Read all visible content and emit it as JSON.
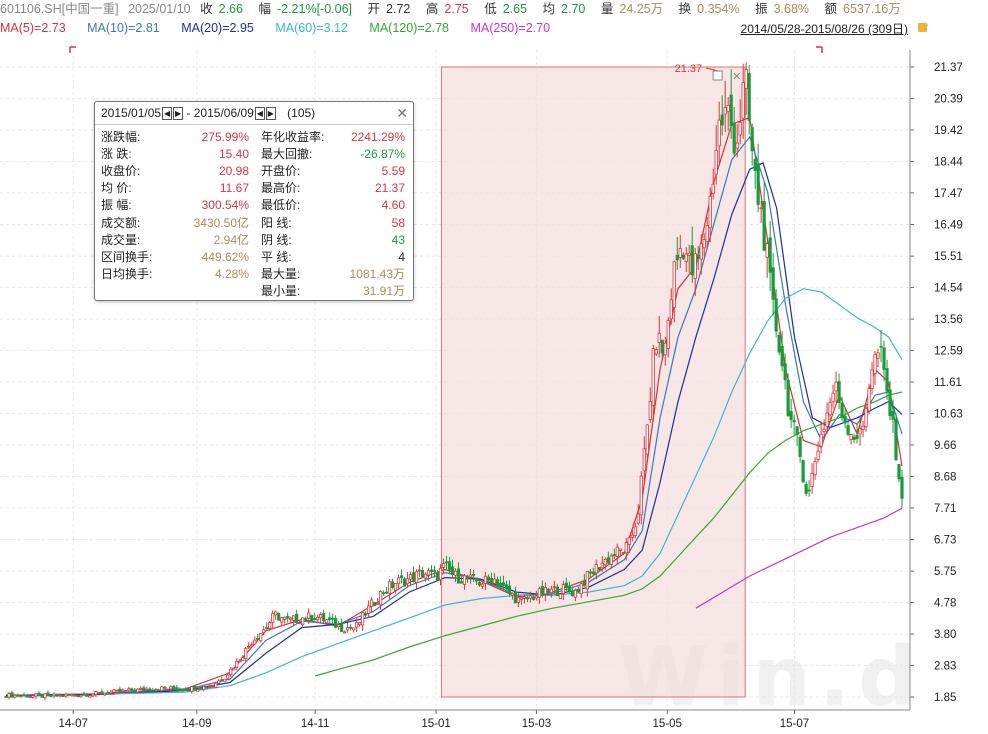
{
  "header": {
    "code": "601106.SH[中国一重]",
    "date": "2025/01/10",
    "close_label": "收",
    "close": "2.66",
    "chg_label": "幅",
    "chg": "-2.21%[-0.06]",
    "open_label": "开",
    "open": "2.72",
    "high_label": "高",
    "high": "2.75",
    "low_label": "低",
    "low": "2.65",
    "avg_label": "均",
    "avg": "2.70",
    "vol_label": "量",
    "vol": "24.25万",
    "turn_label": "换",
    "turn": "0.354%",
    "amp_label": "振",
    "amp": "3.68%",
    "amt_label": "额",
    "amt": "6537.16万"
  },
  "ma_legend": [
    {
      "label": "MA(5)=2.73",
      "color": "#d6323a"
    },
    {
      "label": "MA(10)=2.81",
      "color": "#3a78b8"
    },
    {
      "label": "MA(20)=2.95",
      "color": "#1c2fa0"
    },
    {
      "label": "MA(60)=3.12",
      "color": "#3ab7d6"
    },
    {
      "label": "MA(120)=2.78",
      "color": "#35a833"
    },
    {
      "label": "MA(250)=2.70",
      "color": "#c436d1"
    }
  ],
  "range_label": "2014/05/28-2015/08/26 (309日)",
  "stats": {
    "title_start": "2015/01/05",
    "title_end": "2015/06/09",
    "title_count": "(105)",
    "left": [
      {
        "k": "涨跌幅:",
        "v": "275.99%",
        "c": "up"
      },
      {
        "k": "涨  跌:",
        "v": "15.40",
        "c": "up"
      },
      {
        "k": "收盘价:",
        "v": "20.98",
        "c": "up"
      },
      {
        "k": "均  价:",
        "v": "11.67",
        "c": "up"
      },
      {
        "k": "振  幅:",
        "v": "300.54%",
        "c": "up"
      },
      {
        "k": "成交额:",
        "v": "3430.50亿",
        "c": "gold"
      },
      {
        "k": "成交量:",
        "v": "2.94亿",
        "c": "gold"
      },
      {
        "k": "区间换手:",
        "v": "449.62%",
        "c": "gold"
      },
      {
        "k": "日均换手:",
        "v": "4.28%",
        "c": "gold"
      }
    ],
    "right": [
      {
        "k": "年化收益率:",
        "v": "2241.29%",
        "c": "up"
      },
      {
        "k": "最大回撤:",
        "v": "-26.87%",
        "c": "dn"
      },
      {
        "k": "开盘价:",
        "v": "5.59",
        "c": "up"
      },
      {
        "k": "最高价:",
        "v": "21.37",
        "c": "up"
      },
      {
        "k": "最低价:",
        "v": "4.60",
        "c": "up"
      },
      {
        "k": "阳  线:",
        "v": "58",
        "c": "up"
      },
      {
        "k": "阴  线:",
        "v": "43",
        "c": "dn"
      },
      {
        "k": "平  线:",
        "v": "4",
        "c": "plain"
      },
      {
        "k": "最大量:",
        "v": "1081.43万",
        "c": "gold"
      },
      {
        "k": "最小量:",
        "v": "31.91万",
        "c": "gold"
      }
    ]
  },
  "watermark": "Win.d",
  "chart_data": {
    "type": "line",
    "ylim": [
      1.6,
      21.7
    ],
    "yticks": [
      "21.37",
      "20.39",
      "19.42",
      "18.44",
      "17.47",
      "16.49",
      "15.51",
      "14.54",
      "13.56",
      "12.59",
      "11.61",
      "10.63",
      "9.66",
      "8.68",
      "7.71",
      "6.73",
      "5.75",
      "4.78",
      "3.80",
      "2.83",
      "1.85"
    ],
    "xticks": [
      {
        "label": "14-07",
        "t": 0.075
      },
      {
        "label": "14-09",
        "t": 0.213
      },
      {
        "label": "14-11",
        "t": 0.345
      },
      {
        "label": "15-01",
        "t": 0.48
      },
      {
        "label": "15-03",
        "t": 0.592
      },
      {
        "label": "15-05",
        "t": 0.738
      },
      {
        "label": "15-07",
        "t": 0.88
      }
    ],
    "selection": {
      "start": "2015/01/05",
      "end": "2015/06/09",
      "t0": 0.486,
      "t1": 0.825,
      "color": "#e07070"
    },
    "max_marker": {
      "label": "21.37",
      "t": 0.797,
      "value": 21.37
    },
    "close_series": [
      [
        0,
        1.9
      ],
      [
        0.05,
        1.88
      ],
      [
        0.1,
        1.95
      ],
      [
        0.14,
        2.05
      ],
      [
        0.17,
        2.12
      ],
      [
        0.2,
        2.1
      ],
      [
        0.23,
        2.2
      ],
      [
        0.245,
        2.5
      ],
      [
        0.26,
        3.0
      ],
      [
        0.275,
        3.6
      ],
      [
        0.29,
        4.0
      ],
      [
        0.3,
        4.4
      ],
      [
        0.315,
        4.2
      ],
      [
        0.33,
        4.3
      ],
      [
        0.345,
        4.35
      ],
      [
        0.36,
        4.2
      ],
      [
        0.375,
        4.0
      ],
      [
        0.39,
        4.0
      ],
      [
        0.405,
        4.6
      ],
      [
        0.42,
        5.1
      ],
      [
        0.435,
        5.4
      ],
      [
        0.45,
        5.5
      ],
      [
        0.465,
        5.7
      ],
      [
        0.48,
        5.6
      ],
      [
        0.49,
        5.9
      ],
      [
        0.5,
        5.6
      ],
      [
        0.515,
        5.5
      ],
      [
        0.53,
        5.4
      ],
      [
        0.545,
        5.5
      ],
      [
        0.56,
        5.1
      ],
      [
        0.575,
        4.8
      ],
      [
        0.59,
        5.0
      ],
      [
        0.605,
        5.1
      ],
      [
        0.62,
        5.2
      ],
      [
        0.635,
        5.1
      ],
      [
        0.65,
        5.6
      ],
      [
        0.665,
        6.0
      ],
      [
        0.68,
        6.3
      ],
      [
        0.695,
        6.5
      ],
      [
        0.705,
        7.5
      ],
      [
        0.715,
        10.0
      ],
      [
        0.725,
        13.0
      ],
      [
        0.735,
        12.5
      ],
      [
        0.745,
        15.0
      ],
      [
        0.755,
        16.0
      ],
      [
        0.765,
        15.0
      ],
      [
        0.775,
        15.5
      ],
      [
        0.785,
        17.0
      ],
      [
        0.795,
        19.5
      ],
      [
        0.805,
        20.0
      ],
      [
        0.815,
        19.0
      ],
      [
        0.825,
        20.98
      ],
      [
        0.835,
        18.0
      ],
      [
        0.845,
        16.5
      ],
      [
        0.855,
        14.0
      ],
      [
        0.865,
        12.5
      ],
      [
        0.875,
        10.5
      ],
      [
        0.885,
        9.5
      ],
      [
        0.895,
        8.0
      ],
      [
        0.905,
        9.5
      ],
      [
        0.915,
        10.5
      ],
      [
        0.925,
        11.5
      ],
      [
        0.935,
        10.5
      ],
      [
        0.945,
        10.0
      ],
      [
        0.955,
        9.9
      ],
      [
        0.965,
        12.0
      ],
      [
        0.975,
        12.6
      ],
      [
        0.985,
        11.0
      ],
      [
        0.995,
        9.2
      ],
      [
        1.0,
        7.8
      ]
    ],
    "series": [
      {
        "name": "MA(5)",
        "color": "#d6323a",
        "values": [
          [
            0,
            1.9
          ],
          [
            0.1,
            1.95
          ],
          [
            0.2,
            2.1
          ],
          [
            0.25,
            2.6
          ],
          [
            0.29,
            3.9
          ],
          [
            0.33,
            4.25
          ],
          [
            0.37,
            4.05
          ],
          [
            0.41,
            4.7
          ],
          [
            0.45,
            5.4
          ],
          [
            0.49,
            5.8
          ],
          [
            0.53,
            5.45
          ],
          [
            0.57,
            4.95
          ],
          [
            0.61,
            5.1
          ],
          [
            0.65,
            5.5
          ],
          [
            0.69,
            6.3
          ],
          [
            0.71,
            8.0
          ],
          [
            0.73,
            12.0
          ],
          [
            0.75,
            14.5
          ],
          [
            0.77,
            15.2
          ],
          [
            0.79,
            17.8
          ],
          [
            0.81,
            19.6
          ],
          [
            0.83,
            19.8
          ],
          [
            0.85,
            16.0
          ],
          [
            0.87,
            12.0
          ],
          [
            0.89,
            9.8
          ],
          [
            0.91,
            9.6
          ],
          [
            0.93,
            11.2
          ],
          [
            0.95,
            10.0
          ],
          [
            0.97,
            12.0
          ],
          [
            0.985,
            11.6
          ],
          [
            1.0,
            9.0
          ]
        ]
      },
      {
        "name": "MA(10)",
        "color": "#3a78b8",
        "values": [
          [
            0,
            1.9
          ],
          [
            0.1,
            1.93
          ],
          [
            0.2,
            2.08
          ],
          [
            0.25,
            2.4
          ],
          [
            0.29,
            3.6
          ],
          [
            0.33,
            4.2
          ],
          [
            0.37,
            4.1
          ],
          [
            0.41,
            4.5
          ],
          [
            0.45,
            5.3
          ],
          [
            0.49,
            5.7
          ],
          [
            0.53,
            5.5
          ],
          [
            0.57,
            5.0
          ],
          [
            0.61,
            5.05
          ],
          [
            0.65,
            5.4
          ],
          [
            0.69,
            6.1
          ],
          [
            0.71,
            7.0
          ],
          [
            0.73,
            10.5
          ],
          [
            0.75,
            13.0
          ],
          [
            0.77,
            14.5
          ],
          [
            0.79,
            16.5
          ],
          [
            0.81,
            18.5
          ],
          [
            0.83,
            19.2
          ],
          [
            0.85,
            17.5
          ],
          [
            0.87,
            14.0
          ],
          [
            0.89,
            11.0
          ],
          [
            0.91,
            9.8
          ],
          [
            0.93,
            10.6
          ],
          [
            0.95,
            10.3
          ],
          [
            0.97,
            11.2
          ],
          [
            0.985,
            11.3
          ],
          [
            1.0,
            10.0
          ]
        ]
      },
      {
        "name": "MA(20)",
        "color": "#1c2fa0",
        "values": [
          [
            0,
            1.9
          ],
          [
            0.1,
            1.92
          ],
          [
            0.2,
            2.05
          ],
          [
            0.25,
            2.3
          ],
          [
            0.29,
            3.2
          ],
          [
            0.33,
            4.0
          ],
          [
            0.37,
            4.1
          ],
          [
            0.41,
            4.35
          ],
          [
            0.45,
            5.1
          ],
          [
            0.49,
            5.55
          ],
          [
            0.53,
            5.5
          ],
          [
            0.57,
            5.1
          ],
          [
            0.61,
            5.0
          ],
          [
            0.65,
            5.25
          ],
          [
            0.69,
            5.8
          ],
          [
            0.71,
            6.4
          ],
          [
            0.73,
            8.5
          ],
          [
            0.75,
            11.0
          ],
          [
            0.77,
            13.0
          ],
          [
            0.79,
            14.8
          ],
          [
            0.81,
            16.8
          ],
          [
            0.83,
            18.2
          ],
          [
            0.845,
            18.4
          ],
          [
            0.86,
            17.0
          ],
          [
            0.88,
            13.0
          ],
          [
            0.9,
            10.5
          ],
          [
            0.92,
            10.2
          ],
          [
            0.95,
            10.5
          ],
          [
            0.97,
            10.8
          ],
          [
            0.985,
            11.0
          ],
          [
            1.0,
            10.6
          ]
        ]
      },
      {
        "name": "MA(60)",
        "color": "#3ab7d6",
        "values": [
          [
            0.12,
            1.95
          ],
          [
            0.2,
            2.0
          ],
          [
            0.25,
            2.2
          ],
          [
            0.29,
            2.6
          ],
          [
            0.33,
            3.1
          ],
          [
            0.37,
            3.5
          ],
          [
            0.41,
            3.9
          ],
          [
            0.45,
            4.3
          ],
          [
            0.49,
            4.7
          ],
          [
            0.53,
            4.9
          ],
          [
            0.57,
            5.0
          ],
          [
            0.61,
            5.0
          ],
          [
            0.65,
            5.1
          ],
          [
            0.69,
            5.3
          ],
          [
            0.71,
            5.6
          ],
          [
            0.73,
            6.3
          ],
          [
            0.75,
            7.5
          ],
          [
            0.77,
            8.7
          ],
          [
            0.79,
            9.9
          ],
          [
            0.81,
            11.3
          ],
          [
            0.83,
            12.5
          ],
          [
            0.85,
            13.5
          ],
          [
            0.87,
            14.2
          ],
          [
            0.89,
            14.5
          ],
          [
            0.91,
            14.4
          ],
          [
            0.93,
            14.0
          ],
          [
            0.95,
            13.6
          ],
          [
            0.97,
            13.3
          ],
          [
            0.985,
            13.0
          ],
          [
            1.0,
            12.3
          ]
        ]
      },
      {
        "name": "MA(120)",
        "color": "#35a833",
        "values": [
          [
            0.345,
            2.5
          ],
          [
            0.37,
            2.7
          ],
          [
            0.41,
            3.0
          ],
          [
            0.45,
            3.4
          ],
          [
            0.49,
            3.75
          ],
          [
            0.53,
            4.05
          ],
          [
            0.57,
            4.35
          ],
          [
            0.61,
            4.6
          ],
          [
            0.65,
            4.8
          ],
          [
            0.69,
            5.0
          ],
          [
            0.71,
            5.2
          ],
          [
            0.73,
            5.6
          ],
          [
            0.75,
            6.2
          ],
          [
            0.77,
            6.8
          ],
          [
            0.79,
            7.4
          ],
          [
            0.81,
            8.1
          ],
          [
            0.83,
            8.8
          ],
          [
            0.85,
            9.4
          ],
          [
            0.87,
            9.8
          ],
          [
            0.89,
            10.1
          ],
          [
            0.91,
            10.3
          ],
          [
            0.93,
            10.5
          ],
          [
            0.95,
            10.8
          ],
          [
            0.97,
            11.0
          ],
          [
            0.985,
            11.2
          ],
          [
            1.0,
            11.3
          ]
        ]
      },
      {
        "name": "MA(250)",
        "color": "#c436d1",
        "values": [
          [
            0.77,
            4.6
          ],
          [
            0.8,
            5.1
          ],
          [
            0.83,
            5.6
          ],
          [
            0.86,
            6.0
          ],
          [
            0.89,
            6.4
          ],
          [
            0.92,
            6.8
          ],
          [
            0.95,
            7.1
          ],
          [
            0.98,
            7.4
          ],
          [
            1.0,
            7.7
          ]
        ]
      }
    ]
  }
}
